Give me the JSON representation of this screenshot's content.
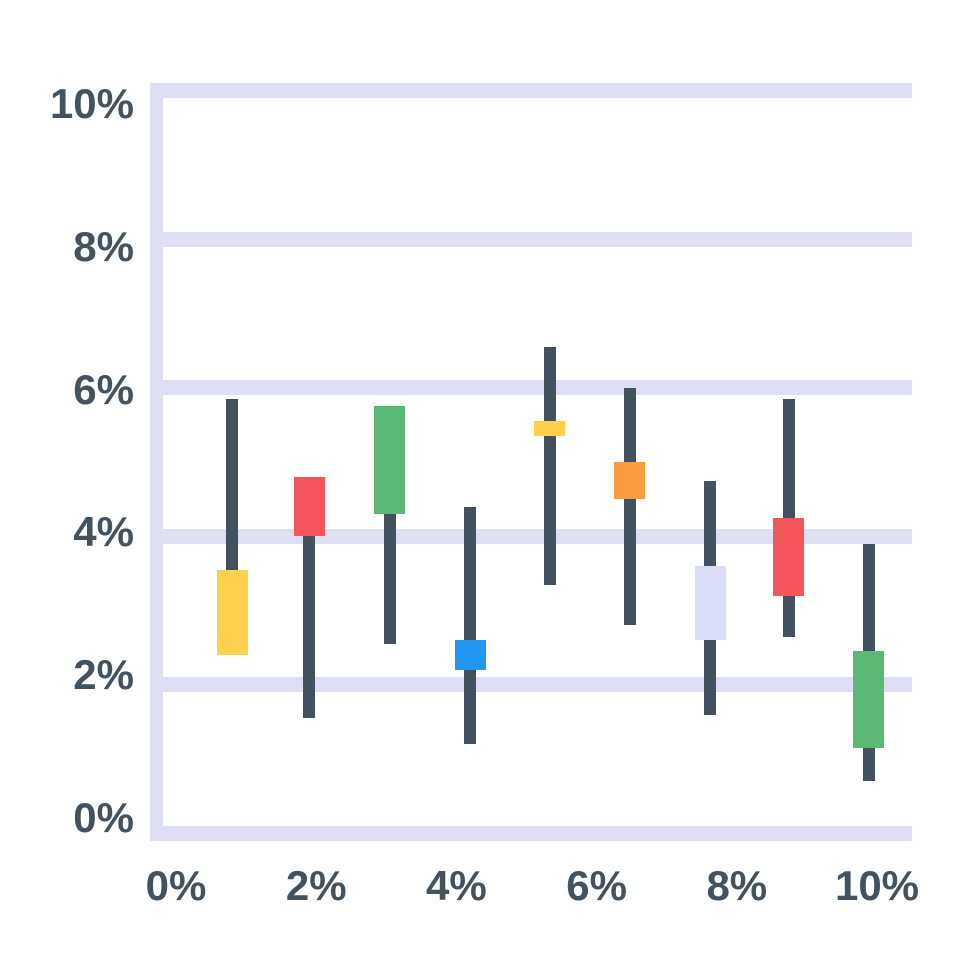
{
  "page": {
    "background": "#ffffff",
    "description": "Flat-style candlestick chart illustration with lavender horizontal gridlines"
  },
  "chart_data": {
    "type": "candlestick",
    "title": "",
    "xlabel": "",
    "ylabel": "",
    "x_axis": {
      "tick_labels": [
        "0%",
        "2%",
        "4%",
        "6%",
        "8%",
        "10%"
      ],
      "tick_values": [
        0,
        2,
        4,
        6,
        8,
        10
      ],
      "range": [
        0,
        10.8
      ]
    },
    "y_axis": {
      "tick_labels": [
        "10%",
        "8%",
        "6%",
        "4%",
        "2%",
        "0%"
      ],
      "tick_values": [
        10,
        8,
        6,
        4,
        2,
        0
      ],
      "range": [
        0,
        10
      ]
    },
    "legend": "none",
    "grid": {
      "horizontal": true,
      "vertical": false
    },
    "colors": {
      "gridline": "#DEDEF5",
      "axis": "#DEDEF5",
      "wick": "#42525F",
      "label": "#42525F"
    },
    "series": [
      {
        "x": 0.8,
        "high": 5.85,
        "open": 3.55,
        "close": 2.4,
        "low": 2.4,
        "color": "#FDD14E",
        "color_name": "yellow"
      },
      {
        "x": 1.9,
        "high": 4.8,
        "open": 4.8,
        "close": 4.0,
        "low": 1.55,
        "color": "#F4555A",
        "color_name": "red"
      },
      {
        "x": 3.05,
        "high": 5.75,
        "open": 5.75,
        "close": 4.3,
        "low": 2.55,
        "color": "#5BB875",
        "color_name": "green"
      },
      {
        "x": 4.2,
        "high": 4.4,
        "open": 2.6,
        "close": 2.2,
        "low": 1.2,
        "color": "#2196F3",
        "color_name": "blue"
      },
      {
        "x": 5.33,
        "high": 6.55,
        "open": 5.55,
        "close": 5.35,
        "low": 3.35,
        "color": "#FDD14E",
        "color_name": "yellow"
      },
      {
        "x": 6.47,
        "high": 6.0,
        "open": 5.0,
        "close": 4.5,
        "low": 2.8,
        "color": "#F99C3D",
        "color_name": "orange"
      },
      {
        "x": 7.62,
        "high": 4.75,
        "open": 3.6,
        "close": 2.6,
        "low": 1.6,
        "color": "#DBDDF6",
        "color_name": "lavender"
      },
      {
        "x": 8.74,
        "high": 5.85,
        "open": 4.25,
        "close": 3.2,
        "low": 2.65,
        "color": "#F4555A",
        "color_name": "red"
      },
      {
        "x": 9.88,
        "high": 3.9,
        "open": 2.45,
        "close": 1.15,
        "low": 0.7,
        "color": "#5BB875",
        "color_name": "green"
      }
    ]
  }
}
